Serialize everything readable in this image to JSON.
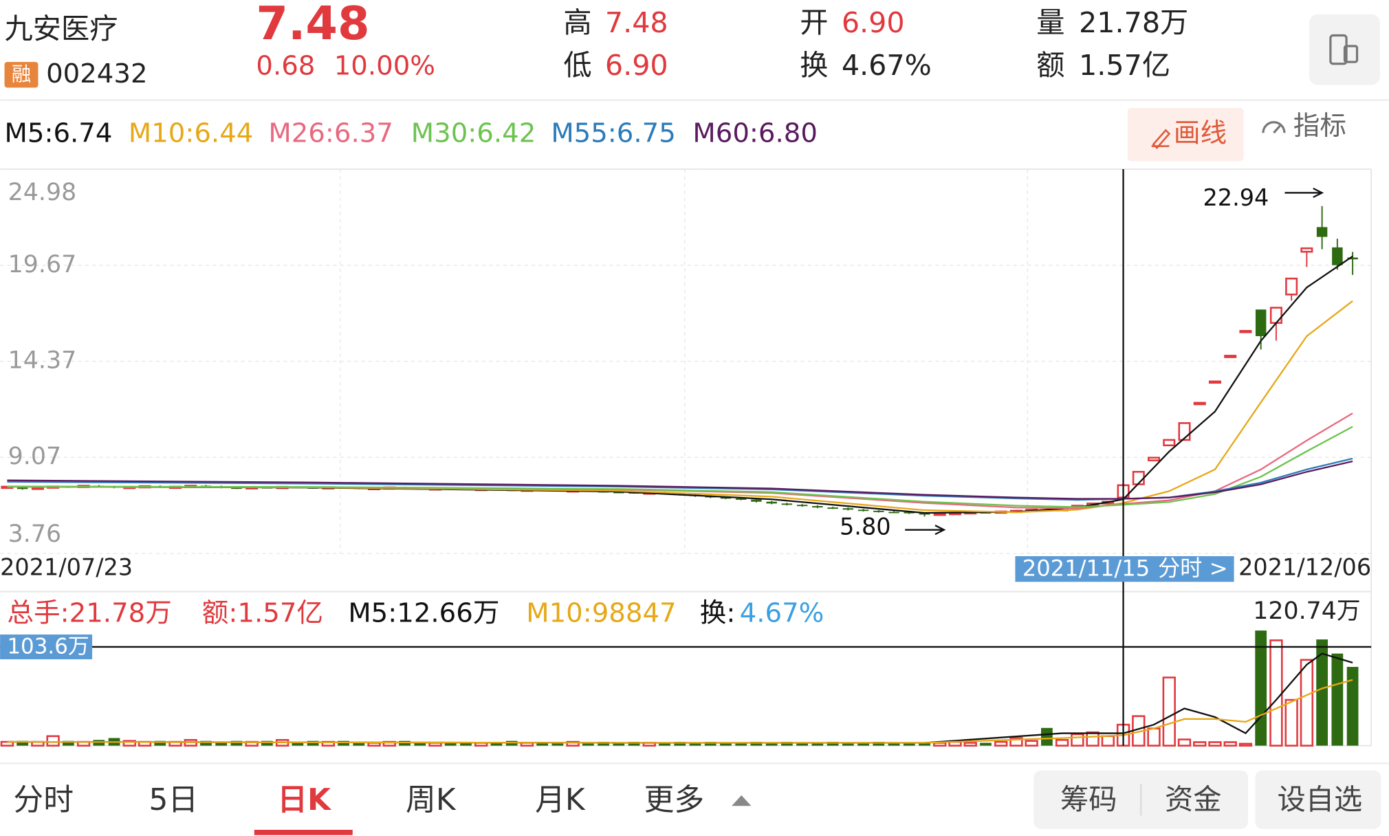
{
  "header": {
    "name": "九安医疗",
    "badge": "融",
    "code": "002432",
    "price": "7.48",
    "change": "0.68",
    "change_pct": "10.00%",
    "high_label": "高",
    "high": "7.48",
    "low_label": "低",
    "low": "6.90",
    "open_label": "开",
    "open": "6.90",
    "turnover_label": "换",
    "turnover": "4.67%",
    "volume_label": "量",
    "volume": "21.78万",
    "amount_label": "额",
    "amount": "1.57亿"
  },
  "toolbar": {
    "ma_legend": [
      {
        "text": "M5:6.74",
        "color": "#111111"
      },
      {
        "text": "M10:6.44",
        "color": "#e6a817"
      },
      {
        "text": "M26:6.37",
        "color": "#e8697f"
      },
      {
        "text": "M30:6.42",
        "color": "#6cc34f"
      },
      {
        "text": "M55:6.75",
        "color": "#2b7bb9"
      },
      {
        "text": "M60:6.80",
        "color": "#5a1a5e"
      }
    ],
    "draw_button": "画线",
    "indicator_button": "指标"
  },
  "chart_data": {
    "type": "candlestick",
    "up_color": "#e0393e",
    "down_color": "#2d6a12",
    "categories": [
      "2021/07/23",
      null,
      null,
      null,
      null,
      null,
      null,
      null,
      null,
      null,
      null,
      null,
      null,
      null,
      null,
      null,
      null,
      null,
      null,
      null,
      null,
      null,
      null,
      null,
      null,
      null,
      null,
      null,
      null,
      null,
      null,
      null,
      null,
      null,
      null,
      null,
      null,
      null,
      null,
      null,
      null,
      null,
      null,
      null,
      null,
      null,
      null,
      null,
      null,
      null,
      null,
      null,
      null,
      null,
      null,
      null,
      null,
      null,
      null,
      null,
      null,
      null,
      null,
      null,
      null,
      null,
      null,
      null,
      null,
      null,
      null,
      null,
      null,
      "2021/11/15",
      null,
      null,
      null,
      null,
      null,
      null,
      null,
      null,
      null,
      null,
      null,
      null,
      null,
      null,
      "2021/12/06"
    ],
    "cursor_action": "分时 >",
    "ohlc": [
      [
        7.4,
        7.49,
        7.36,
        7.45
      ],
      [
        7.45,
        7.49,
        7.28,
        7.32
      ],
      [
        7.32,
        7.44,
        7.28,
        7.4
      ],
      [
        7.4,
        7.5,
        7.36,
        7.46
      ],
      [
        7.46,
        7.5,
        7.38,
        7.42
      ],
      [
        7.42,
        7.54,
        7.38,
        7.5
      ],
      [
        7.5,
        7.54,
        7.42,
        7.46
      ],
      [
        7.46,
        7.5,
        7.36,
        7.4
      ],
      [
        7.4,
        7.48,
        7.36,
        7.44
      ],
      [
        7.44,
        7.52,
        7.4,
        7.48
      ],
      [
        7.48,
        7.52,
        7.38,
        7.42
      ],
      [
        7.42,
        7.49,
        7.38,
        7.45
      ],
      [
        7.45,
        7.54,
        7.41,
        7.5
      ],
      [
        7.5,
        7.54,
        7.43,
        7.47
      ],
      [
        7.47,
        7.51,
        7.36,
        7.4
      ],
      [
        7.4,
        7.44,
        7.32,
        7.36
      ],
      [
        7.36,
        7.46,
        7.32,
        7.42
      ],
      [
        7.42,
        7.46,
        7.35,
        7.39
      ],
      [
        7.39,
        7.48,
        7.35,
        7.44
      ],
      [
        7.44,
        7.48,
        7.37,
        7.41
      ],
      [
        7.41,
        7.45,
        7.34,
        7.38
      ],
      [
        7.38,
        7.46,
        7.34,
        7.42
      ],
      [
        7.42,
        7.46,
        7.36,
        7.4
      ],
      [
        7.4,
        7.44,
        7.31,
        7.35
      ],
      [
        7.35,
        7.42,
        7.31,
        7.38
      ],
      [
        7.38,
        7.45,
        7.34,
        7.41
      ],
      [
        7.41,
        7.45,
        7.32,
        7.36
      ],
      [
        7.36,
        7.4,
        7.28,
        7.32
      ],
      [
        7.32,
        7.4,
        7.28,
        7.36
      ],
      [
        7.36,
        7.4,
        7.3,
        7.34
      ],
      [
        7.34,
        7.38,
        7.26,
        7.3
      ],
      [
        7.3,
        7.37,
        7.26,
        7.33
      ],
      [
        7.33,
        7.37,
        7.24,
        7.28
      ],
      [
        7.28,
        7.32,
        7.21,
        7.25
      ],
      [
        7.25,
        7.33,
        7.21,
        7.29
      ],
      [
        7.29,
        7.33,
        7.22,
        7.26
      ],
      [
        7.26,
        7.3,
        7.18,
        7.22
      ],
      [
        7.22,
        7.29,
        7.18,
        7.25
      ],
      [
        7.25,
        7.29,
        7.16,
        7.2
      ],
      [
        7.2,
        7.24,
        7.12,
        7.16
      ],
      [
        7.16,
        7.2,
        7.1,
        7.14
      ],
      [
        7.14,
        7.18,
        7.06,
        7.1
      ],
      [
        7.1,
        7.17,
        7.06,
        7.13
      ],
      [
        7.13,
        7.17,
        7.02,
        7.06
      ],
      [
        7.06,
        7.1,
        6.96,
        7.0
      ],
      [
        7.0,
        7.04,
        6.89,
        6.93
      ],
      [
        6.93,
        6.97,
        6.82,
        6.86
      ],
      [
        6.86,
        6.9,
        6.76,
        6.8
      ],
      [
        6.8,
        6.84,
        6.7,
        6.74
      ],
      [
        6.74,
        6.78,
        6.58,
        6.62
      ],
      [
        6.62,
        6.66,
        6.48,
        6.52
      ],
      [
        6.52,
        6.56,
        6.41,
        6.45
      ],
      [
        6.45,
        6.49,
        6.34,
        6.38
      ],
      [
        6.38,
        6.42,
        6.26,
        6.3
      ],
      [
        6.3,
        6.34,
        6.22,
        6.26
      ],
      [
        6.26,
        6.3,
        6.14,
        6.18
      ],
      [
        6.18,
        6.22,
        6.08,
        6.12
      ],
      [
        6.12,
        6.16,
        6.02,
        6.06
      ],
      [
        6.06,
        6.1,
        6.01,
        6.05
      ],
      [
        6.05,
        6.09,
        5.94,
        5.98
      ],
      [
        5.98,
        6.02,
        5.8,
        5.92
      ],
      [
        5.92,
        6.0,
        5.88,
        5.96
      ],
      [
        5.96,
        6.04,
        5.92,
        6.0
      ],
      [
        6.0,
        6.08,
        5.96,
        6.04
      ],
      [
        6.04,
        6.08,
        5.98,
        6.02
      ],
      [
        6.02,
        6.12,
        5.98,
        6.08
      ],
      [
        6.08,
        6.16,
        6.04,
        6.12
      ],
      [
        6.12,
        6.22,
        6.08,
        6.18
      ],
      [
        6.18,
        6.22,
        6.1,
        6.14
      ],
      [
        6.14,
        6.34,
        6.1,
        6.3
      ],
      [
        6.3,
        6.44,
        6.26,
        6.4
      ],
      [
        6.4,
        6.56,
        6.36,
        6.52
      ],
      [
        6.52,
        6.66,
        6.48,
        6.62
      ],
      [
        6.85,
        7.53,
        6.85,
        7.53
      ],
      [
        7.58,
        8.27,
        7.58,
        8.27
      ],
      [
        8.9,
        9.05,
        8.85,
        9.05
      ],
      [
        9.73,
        10.03,
        9.73,
        10.03
      ],
      [
        10.03,
        10.96,
        10.03,
        10.96
      ],
      [
        12.0,
        12.08,
        12.0,
        12.08
      ],
      [
        13.2,
        13.26,
        13.2,
        13.26
      ],
      [
        14.6,
        14.68,
        14.6,
        14.68
      ],
      [
        15.98,
        16.05,
        15.98,
        16.05
      ],
      [
        17.23,
        17.23,
        15.02,
        15.76
      ],
      [
        16.49,
        17.33,
        15.51,
        17.33
      ],
      [
        18.06,
        18.94,
        17.72,
        18.94
      ],
      [
        20.42,
        20.61,
        19.58,
        20.61
      ],
      [
        21.78,
        22.94,
        20.56,
        21.24
      ],
      [
        20.66,
        21.14,
        19.43,
        19.68
      ],
      [
        20.1,
        20.41,
        19.14,
        20.0
      ]
    ],
    "ylim": [
      3.76,
      24.98
    ],
    "yticks": [
      24.98,
      19.67,
      14.37,
      9.07,
      3.76
    ],
    "grid": true,
    "high_mark": 22.94,
    "low_mark": {
      "value": 5.8,
      "label": "5.80"
    },
    "ma": {
      "x": [
        0,
        20,
        40,
        50,
        60,
        66,
        70,
        73,
        76,
        79,
        82,
        85,
        88
      ],
      "series": [
        {
          "name": "M5",
          "color": "#111111",
          "values": [
            7.45,
            7.4,
            7.18,
            6.75,
            6.0,
            6.06,
            6.3,
            6.75,
            9.39,
            11.6,
            15.5,
            18.45,
            20.17
          ]
        },
        {
          "name": "M10",
          "color": "#e6a817",
          "values": [
            7.44,
            7.41,
            7.22,
            6.9,
            6.15,
            6.04,
            6.18,
            6.55,
            7.2,
            8.4,
            12.1,
            15.76,
            17.7
          ]
        },
        {
          "name": "M26",
          "color": "#e8697f",
          "values": [
            7.45,
            7.42,
            7.3,
            7.1,
            6.55,
            6.3,
            6.25,
            6.5,
            6.7,
            7.2,
            8.4,
            10.0,
            11.5
          ]
        },
        {
          "name": "M30",
          "color": "#6cc34f",
          "values": [
            7.46,
            7.43,
            7.32,
            7.15,
            6.62,
            6.4,
            6.32,
            6.45,
            6.6,
            7.04,
            8.0,
            9.4,
            10.76
          ]
        },
        {
          "name": "M55",
          "color": "#2b7bb9",
          "values": [
            7.72,
            7.62,
            7.45,
            7.3,
            6.95,
            6.8,
            6.72,
            6.78,
            6.85,
            7.19,
            7.67,
            8.4,
            9.0
          ]
        },
        {
          "name": "M60",
          "color": "#5a1a5e",
          "values": [
            7.8,
            7.68,
            7.5,
            7.35,
            7.0,
            6.85,
            6.78,
            6.78,
            6.85,
            7.14,
            7.58,
            8.27,
            8.85
          ]
        }
      ]
    }
  },
  "volume_chart": {
    "type": "bar",
    "legend": [
      {
        "text": "总手:21.78万",
        "color": "#e0393e"
      },
      {
        "text": "额:1.57亿",
        "color": "#e0393e"
      },
      {
        "text": "M5:12.66万",
        "color": "#111111"
      },
      {
        "text": "M10:98847",
        "color": "#e6a817"
      },
      {
        "text": "换:",
        "color": "#111111"
      },
      {
        "text": "4.67%",
        "color": "#3ba0e0"
      }
    ],
    "values": [
      4,
      5,
      4,
      10,
      5,
      4,
      6,
      8,
      5,
      4,
      5,
      4,
      6,
      5,
      4,
      5,
      4,
      5,
      6,
      4,
      5,
      4,
      5,
      4,
      3,
      4,
      5,
      4,
      3,
      4,
      4,
      3,
      4,
      5,
      3,
      4,
      3,
      4,
      3,
      4,
      3,
      4,
      3,
      3,
      4,
      3,
      4,
      3,
      3,
      4,
      3,
      4,
      3,
      3,
      4,
      3,
      3,
      4,
      3,
      3,
      3,
      3,
      4,
      3,
      3,
      4,
      8,
      5,
      18.6,
      6,
      12,
      14,
      10,
      22,
      31,
      18,
      71.5,
      6.5,
      3.7,
      3.7,
      3.7,
      2,
      120.74,
      110.5,
      48,
      90,
      111.4,
      96.6,
      82.6
    ],
    "ylim": [
      0,
      120.74
    ],
    "max_label": {
      "value": 120.74,
      "label": "120.74万"
    },
    "cursor_value": {
      "value": 103.6,
      "label": "103.6万"
    },
    "ma": {
      "x": [
        0,
        40,
        60,
        69,
        73,
        75,
        77,
        79,
        81,
        83,
        85,
        86,
        88
      ],
      "series": [
        {
          "name": "M5",
          "color": "#111111",
          "values": [
            4,
            3,
            3,
            13,
            13,
            22,
            39,
            30,
            13,
            48,
            85,
            96.6,
            87
          ]
        },
        {
          "name": "M10",
          "color": "#e6a817",
          "values": [
            4,
            3,
            3,
            8,
            11,
            18,
            28,
            28,
            25,
            39,
            53,
            60,
            69
          ]
        }
      ]
    }
  },
  "tabs": [
    "分时",
    "5日",
    "日K",
    "周K",
    "月K",
    "更多"
  ],
  "buttons": [
    "筹码",
    "资金",
    "设自选"
  ]
}
